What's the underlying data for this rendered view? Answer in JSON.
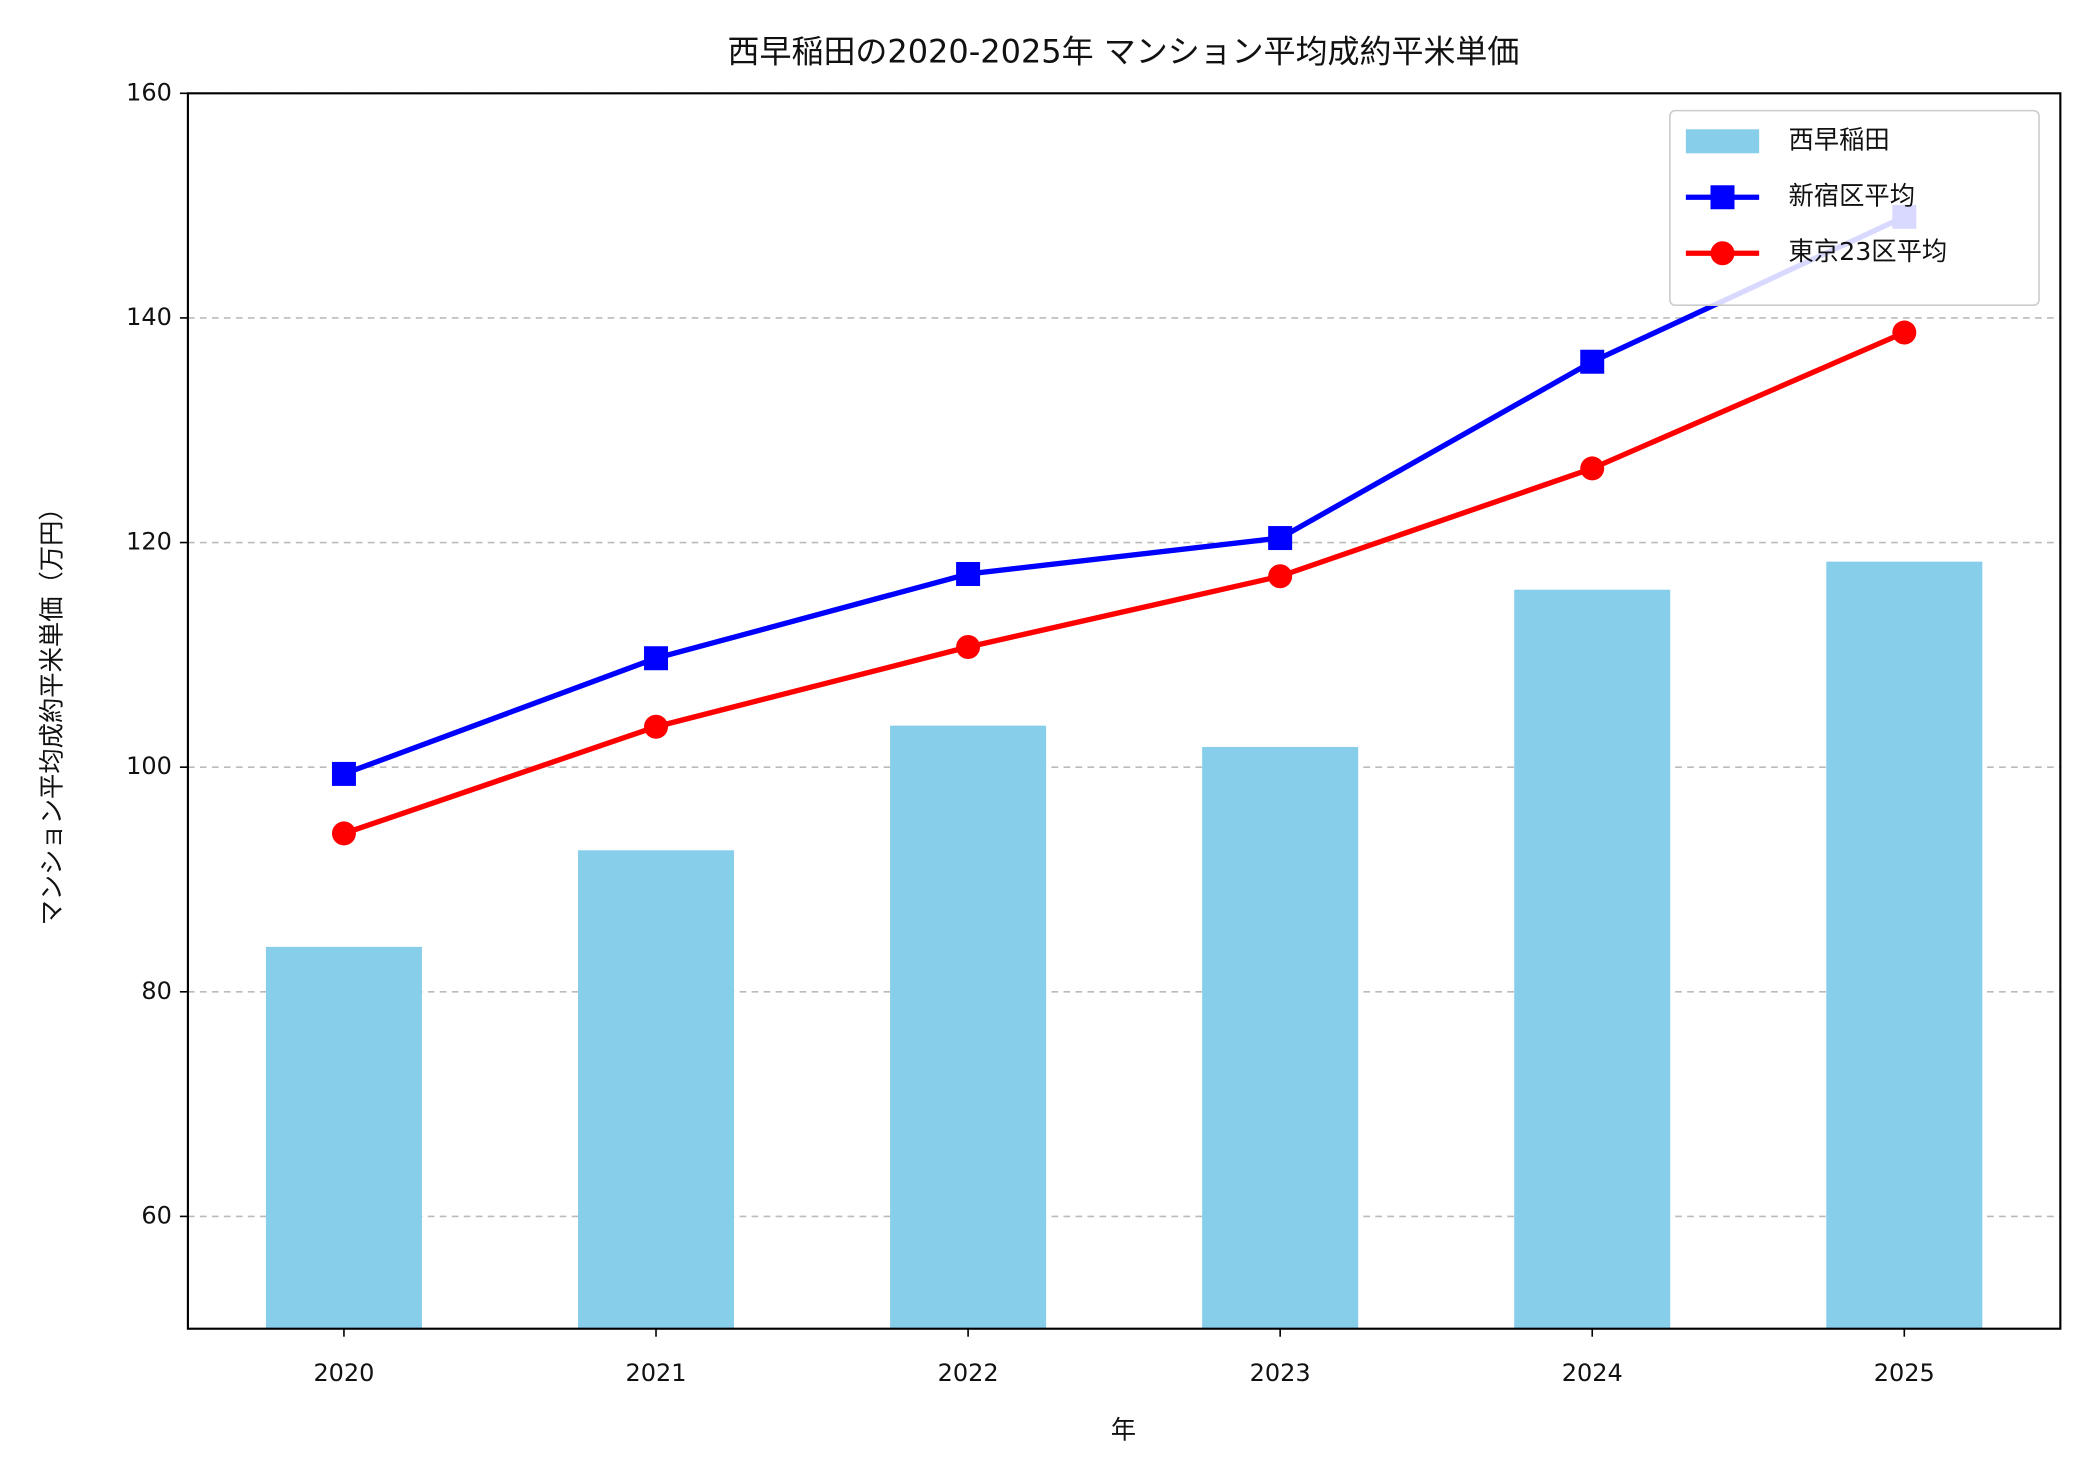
{
  "chart_data": {
    "type": "bar",
    "title": "西早稲田の2020-2025年 マンション平均成約平米単価",
    "xlabel": "年",
    "ylabel": "マンション平均成約平米単価（万円）",
    "categories": [
      "2020",
      "2021",
      "2022",
      "2023",
      "2024",
      "2025"
    ],
    "series": [
      {
        "name": "西早稲田",
        "type": "bar",
        "color": "#87ceeb",
        "values": [
          84.0,
          92.6,
          103.7,
          101.8,
          115.8,
          118.3
        ]
      },
      {
        "name": "新宿区平均",
        "type": "line",
        "marker": "square",
        "color": "#0000ff",
        "values": [
          99.4,
          109.7,
          117.2,
          120.4,
          136.1,
          149.0
        ]
      },
      {
        "name": "東京23区平均",
        "type": "line",
        "marker": "circle",
        "color": "#ff0000",
        "values": [
          94.1,
          103.6,
          110.7,
          117.0,
          126.6,
          138.7
        ]
      }
    ],
    "ylim": [
      50,
      160
    ],
    "yticks": [
      60,
      80,
      100,
      120,
      140,
      160
    ],
    "grid": true,
    "legend": "upper-right"
  }
}
